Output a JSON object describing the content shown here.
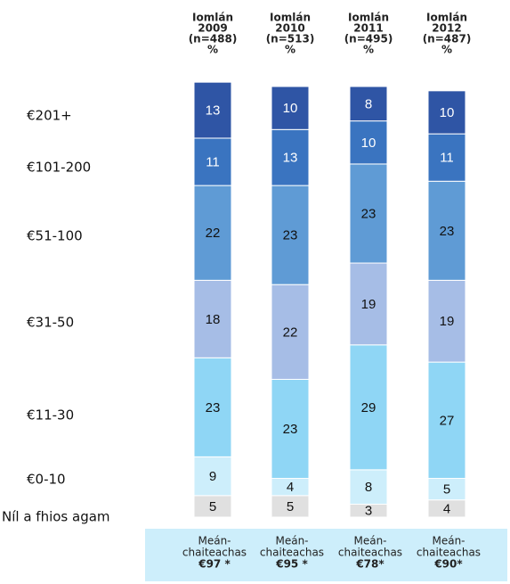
{
  "chart_data": {
    "type": "bar",
    "stacked": true,
    "categories": [
      "2009",
      "2010",
      "2011",
      "2012"
    ],
    "column_headers": [
      [
        "Iomlán",
        "2009",
        "(n=488)",
        "%"
      ],
      [
        "Iomlán",
        "2010",
        "(n=513)",
        "%"
      ],
      [
        "Iomlán",
        "2011",
        "(n=495)",
        "%"
      ],
      [
        "Iomlán",
        "2012",
        "(n=487)",
        "%"
      ]
    ],
    "series": [
      {
        "name": "Níl a fhios agam",
        "color": "#e0e0e0",
        "values": [
          5,
          5,
          3,
          4
        ]
      },
      {
        "name": "€0-10",
        "color": "#cdeefb",
        "values": [
          9,
          4,
          8,
          5
        ]
      },
      {
        "name": "€11-30",
        "color": "#8fd6f5",
        "values": [
          23,
          23,
          29,
          27
        ]
      },
      {
        "name": "€31-50",
        "color": "#a6bde6",
        "values": [
          18,
          22,
          19,
          19
        ]
      },
      {
        "name": "€51-100",
        "color": "#5f9bd5",
        "values": [
          22,
          23,
          23,
          23
        ]
      },
      {
        "name": "€101-200",
        "color": "#3a74c0",
        "values": [
          11,
          13,
          10,
          11
        ]
      },
      {
        "name": "€201+",
        "color": "#2f55a5",
        "values": [
          13,
          10,
          8,
          10
        ]
      }
    ],
    "footer_labels": [
      [
        "Meán-",
        "chaiteachas",
        "€97 *"
      ],
      [
        "Meán-",
        "chaiteachas",
        "€95 *"
      ],
      [
        "Meán-",
        "chaiteachas",
        "€78*"
      ],
      [
        "Meán-",
        "chaiteachas",
        "€90*"
      ]
    ]
  }
}
